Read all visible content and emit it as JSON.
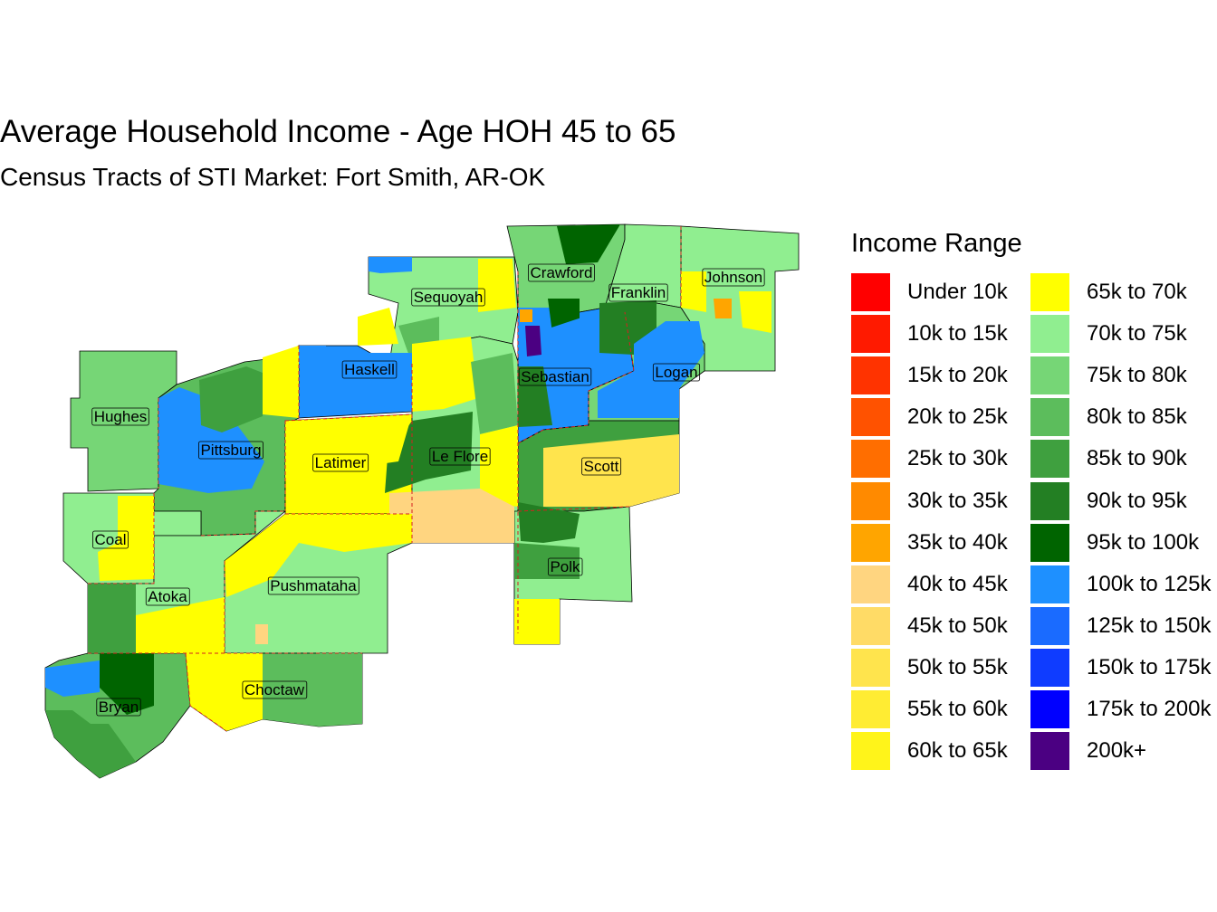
{
  "title": "Average Household Income - Age HOH 45 to 65",
  "subtitle": "Census Tracts of STI Market: Fort Smith, AR-OK",
  "legend": {
    "title": "Income Range",
    "items": [
      {
        "label": "Under 10k",
        "color": "#FF0000"
      },
      {
        "label": "10k to 15k",
        "color": "#FF1A00"
      },
      {
        "label": "15k to 20k",
        "color": "#FF3300"
      },
      {
        "label": "20k to 25k",
        "color": "#FF5200"
      },
      {
        "label": "25k to 30k",
        "color": "#FF6E00"
      },
      {
        "label": "30k to 35k",
        "color": "#FF8A00"
      },
      {
        "label": "35k to 40k",
        "color": "#FFA500"
      },
      {
        "label": "40k to 45k",
        "color": "#FFD580"
      },
      {
        "label": "45k to 50k",
        "color": "#FFDB66"
      },
      {
        "label": "50k to 55k",
        "color": "#FFE44D"
      },
      {
        "label": "55k to 60k",
        "color": "#FFEC33"
      },
      {
        "label": "60k to 65k",
        "color": "#FFF41A"
      },
      {
        "label": "65k to 70k",
        "color": "#FFFF00"
      },
      {
        "label": "70k to 75k",
        "color": "#90EE90"
      },
      {
        "label": "75k to 80k",
        "color": "#76D676"
      },
      {
        "label": "80k to 85k",
        "color": "#5CBD5C"
      },
      {
        "label": "85k to 90k",
        "color": "#3FA03F"
      },
      {
        "label": "90k to 95k",
        "color": "#237F23"
      },
      {
        "label": "95k to 100k",
        "color": "#006400"
      },
      {
        "label": "100k to 125k",
        "color": "#1E90FF"
      },
      {
        "label": "125k to 150k",
        "color": "#1A6BFF"
      },
      {
        "label": "150k to 175k",
        "color": "#0F3CFF"
      },
      {
        "label": "175k to 200k",
        "color": "#0000FF"
      },
      {
        "label": "200k+",
        "color": "#4B0082"
      }
    ]
  },
  "counties": [
    {
      "name": "Crawford",
      "color": "#76D676"
    },
    {
      "name": "Johnson",
      "color": "#90EE90"
    },
    {
      "name": "Sequoyah",
      "color": "#90EE90"
    },
    {
      "name": "Franklin",
      "color": "#90EE90"
    },
    {
      "name": "Haskell",
      "color": "#1E90FF"
    },
    {
      "name": "Sebastian",
      "color": "#1E90FF"
    },
    {
      "name": "Logan",
      "color": "#76D676"
    },
    {
      "name": "Hughes",
      "color": "#76D676"
    },
    {
      "name": "Pittsburg",
      "color": "#5CBD5C"
    },
    {
      "name": "Latimer",
      "color": "#FFFF00"
    },
    {
      "name": "Le Flore",
      "color": "#90EE90"
    },
    {
      "name": "Scott",
      "color": "#3FA03F"
    },
    {
      "name": "Coal",
      "color": "#90EE90"
    },
    {
      "name": "Polk",
      "color": "#90EE90"
    },
    {
      "name": "Atoka",
      "color": "#90EE90"
    },
    {
      "name": "Pushmataha",
      "color": "#90EE90"
    },
    {
      "name": "Choctaw",
      "color": "#5CBD5C"
    },
    {
      "name": "Bryan",
      "color": "#5CBD5C"
    }
  ]
}
